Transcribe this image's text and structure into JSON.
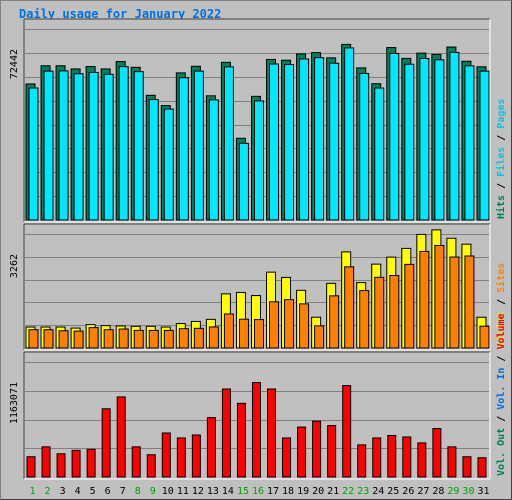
{
  "title": "Daily usage for January 2022",
  "colors": {
    "background": "#c0c0c0",
    "hits": "#00805c",
    "files": "#00e8ff",
    "pages": "#00c8e0",
    "visits": "#ffff00",
    "sites": "#ff8000",
    "volume": "#ff0000",
    "weekend": "#00a000",
    "title": "#0070e0"
  },
  "chart_data": [
    {
      "type": "bar",
      "title": "Daily usage for January 2022",
      "categories": [
        "1",
        "2",
        "3",
        "4",
        "5",
        "6",
        "7",
        "8",
        "9",
        "10",
        "11",
        "12",
        "13",
        "14",
        "15",
        "16",
        "17",
        "18",
        "19",
        "20",
        "21",
        "22",
        "23",
        "24",
        "25",
        "26",
        "27",
        "28",
        "29",
        "30",
        "31"
      ],
      "weekend_days": [
        "1",
        "2",
        "8",
        "9",
        "15",
        "16",
        "22",
        "23",
        "29",
        "30"
      ],
      "ymax_label": "72442",
      "legend": [
        "Hits",
        "Files",
        "Pages"
      ],
      "series": [
        {
          "name": "Hits",
          "values": [
            51600,
            58500,
            58500,
            57300,
            58200,
            57300,
            60100,
            57900,
            47300,
            43400,
            55800,
            58300,
            47100,
            59800,
            31000,
            46900,
            60900,
            60600,
            63000,
            63500,
            61500,
            66600,
            57700,
            51700,
            65400,
            61300,
            63300,
            62800,
            65600,
            60200,
            58100
          ]
        },
        {
          "name": "Files",
          "values": [
            51200,
            57600,
            57700,
            56600,
            57100,
            56400,
            59300,
            57400,
            46800,
            43200,
            55100,
            57600,
            46700,
            59200,
            30200,
            46300,
            60300,
            60100,
            62200,
            62700,
            60600,
            66400,
            56700,
            51200,
            64300,
            60200,
            62400,
            61900,
            64700,
            59600,
            57600
          ]
        }
      ],
      "ylim": [
        0,
        72442
      ]
    },
    {
      "type": "bar",
      "categories": [
        "1",
        "2",
        "3",
        "4",
        "5",
        "6",
        "7",
        "8",
        "9",
        "10",
        "11",
        "12",
        "13",
        "14",
        "15",
        "16",
        "17",
        "18",
        "19",
        "20",
        "21",
        "22",
        "23",
        "24",
        "25",
        "26",
        "27",
        "28",
        "29",
        "30",
        "31"
      ],
      "ymax_label": "3262",
      "legend": [
        "Visits",
        "Sites"
      ],
      "series": [
        {
          "name": "Visits",
          "values": [
            600,
            600,
            600,
            570,
            670,
            640,
            630,
            620,
            620,
            600,
            700,
            760,
            820,
            1550,
            1590,
            1500,
            2170,
            2020,
            1650,
            880,
            1850,
            2750,
            1870,
            2400,
            2600,
            2850,
            3250,
            3380,
            3140,
            2970,
            880
          ]
        },
        {
          "name": "Sites",
          "values": [
            580,
            580,
            550,
            540,
            640,
            580,
            600,
            560,
            560,
            560,
            610,
            620,
            660,
            1030,
            880,
            870,
            1380,
            1440,
            1320,
            690,
            1550,
            2380,
            1700,
            2080,
            2130,
            2450,
            2820,
            2990,
            2660,
            2690,
            680
          ]
        }
      ],
      "ylim": [
        0,
        3262
      ]
    },
    {
      "type": "bar",
      "categories": [
        "1",
        "2",
        "3",
        "4",
        "5",
        "6",
        "7",
        "8",
        "9",
        "10",
        "11",
        "12",
        "13",
        "14",
        "15",
        "16",
        "17",
        "18",
        "19",
        "20",
        "21",
        "22",
        "23",
        "24",
        "25",
        "26",
        "27",
        "28",
        "29",
        "30",
        "31"
      ],
      "ymax_label": "1163071",
      "legend": [
        "Volume",
        "Vol. In",
        "Vol. Out"
      ],
      "series": [
        {
          "name": "Volume",
          "values": [
            205000,
            305000,
            235000,
            270000,
            280000,
            690000,
            810000,
            305000,
            225000,
            445000,
            395000,
            425000,
            600000,
            890000,
            745000,
            955000,
            890000,
            395000,
            505000,
            565000,
            520000,
            925000,
            325000,
            395000,
            420000,
            405000,
            345000,
            490000,
            305000,
            205000,
            195000
          ]
        }
      ],
      "ylim": [
        0,
        1163071
      ]
    }
  ],
  "right_labels": {
    "top": [
      {
        "text": "Hits",
        "color": "#00805c"
      },
      {
        "text": "Files",
        "color": "#00c8e0"
      },
      {
        "text": "Pages",
        "color": "#00c8e0"
      }
    ],
    "mid": [
      {
        "text": "Visits",
        "color": "#e8e800"
      },
      {
        "text": "Sites",
        "color": "#ff8000"
      }
    ],
    "bot": [
      {
        "text": "Vol. Out",
        "color": "#00805c"
      },
      {
        "text": "Vol. In",
        "color": "#0070e0"
      },
      {
        "text": "Volume",
        "color": "#ff0000"
      }
    ]
  }
}
